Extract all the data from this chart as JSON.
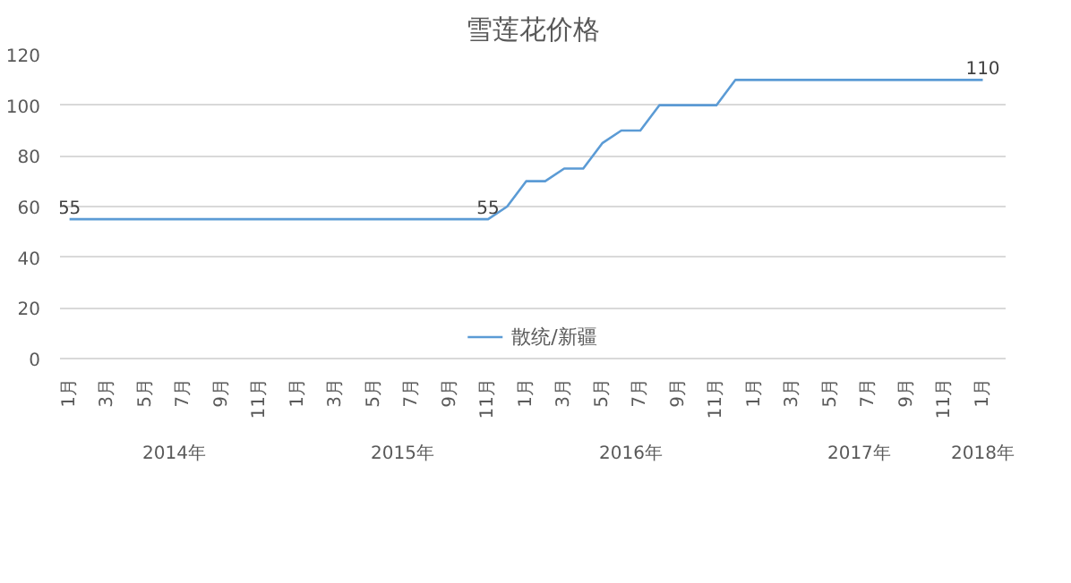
{
  "chart_data": {
    "type": "line",
    "title": "雪莲花价格",
    "categories": [
      "1月",
      null,
      "3月",
      null,
      "5月",
      null,
      "7月",
      null,
      "9月",
      null,
      "11月",
      null,
      "1月",
      null,
      "3月",
      null,
      "5月",
      null,
      "7月",
      null,
      "9月",
      null,
      "11月",
      null,
      "1月",
      null,
      "3月",
      null,
      "5月",
      null,
      "7月",
      null,
      "9月",
      null,
      "11月",
      null,
      "1月",
      null,
      "3月",
      null,
      "5月",
      null,
      "7月",
      null,
      "9月",
      null,
      "11月",
      null,
      "1月"
    ],
    "annotations": [
      "2014年",
      "2015年",
      "2016年",
      "2017年",
      "2018年"
    ],
    "series": [
      {
        "name": "散统/新疆",
        "color": "#5b9bd5",
        "values": [
          55,
          55,
          55,
          55,
          55,
          55,
          55,
          55,
          55,
          55,
          55,
          55,
          55,
          55,
          55,
          55,
          55,
          55,
          55,
          55,
          55,
          55,
          55,
          60,
          70,
          70,
          75,
          75,
          85,
          90,
          90,
          100,
          100,
          100,
          100,
          110,
          110,
          110,
          110,
          110,
          110,
          110,
          110,
          110,
          110,
          110,
          110,
          110,
          110
        ],
        "value_labels": [
          "55",
          null,
          null,
          null,
          null,
          null,
          null,
          null,
          null,
          null,
          null,
          null,
          null,
          null,
          null,
          null,
          null,
          null,
          null,
          null,
          null,
          null,
          "55",
          null,
          null,
          null,
          null,
          null,
          null,
          null,
          null,
          null,
          null,
          null,
          null,
          null,
          null,
          null,
          null,
          null,
          null,
          null,
          null,
          null,
          null,
          null,
          null,
          null,
          "110"
        ]
      }
    ],
    "ylim": [
      0,
      120
    ],
    "yticks": [
      0,
      20,
      40,
      60,
      80,
      100,
      120
    ],
    "grid": "y",
    "legend": "bottom",
    "marker": "none",
    "line_style": "solid"
  }
}
